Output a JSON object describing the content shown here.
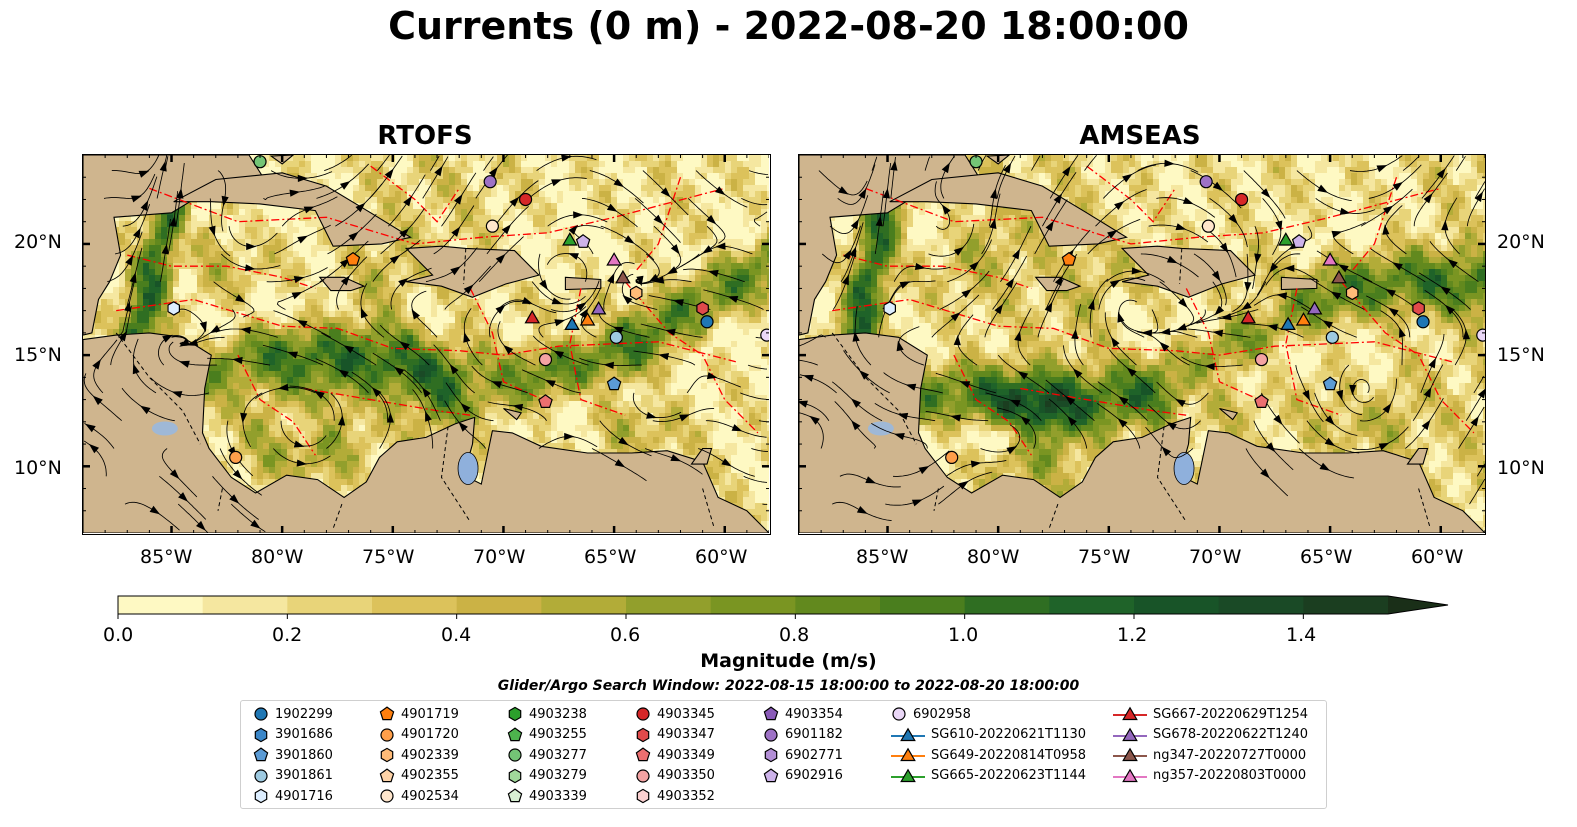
{
  "title": "Currents (0 m) - 2022-08-20 18:00:00",
  "panels": [
    {
      "name": "RTOFS",
      "seed": 3
    },
    {
      "name": "AMSEAS",
      "seed": 11
    }
  ],
  "map_colors": {
    "land": "#cfb58e",
    "ocean_outside": "#93b5e0",
    "eez": "#ff0000",
    "border": "#000000",
    "streamline": "#000000"
  },
  "lon_ticks": [
    "85°W",
    "80°W",
    "75°W",
    "70°W",
    "65°W",
    "60°W"
  ],
  "lat_ticks": [
    "20°N",
    "15°N",
    "10°N"
  ],
  "colorbar": {
    "label": "Magnitude (m/s)",
    "min": 0.0,
    "max": 1.5,
    "extend": "max",
    "ticks": [
      "0.0",
      "0.2",
      "0.4",
      "0.6",
      "0.8",
      "1.0",
      "1.2",
      "1.4"
    ],
    "colors": [
      "#fef9c3",
      "#f5e7a0",
      "#e8d479",
      "#dcc25b",
      "#cbb245",
      "#b2ac38",
      "#929f2c",
      "#7a9522",
      "#62891e",
      "#4a7e1e",
      "#2f6e22",
      "#1f6329",
      "#185428",
      "#1a4a26",
      "#1b3e20",
      "#1a2f18"
    ]
  },
  "search_window": "Glider/Argo Search Window: 2022-08-15 18:00:00 to 2022-08-20 18:00:00",
  "legend": {
    "columns": [
      [
        {
          "label": "1902299",
          "shape": "circle",
          "color": "#1f77b4"
        },
        {
          "label": "3901686",
          "shape": "hexagon",
          "color": "#3a86c8"
        },
        {
          "label": "3901860",
          "shape": "pentagon",
          "color": "#5b9bd5"
        },
        {
          "label": "3901861",
          "shape": "circle",
          "color": "#9ecae1"
        },
        {
          "label": "4901716",
          "shape": "hexagon",
          "color": "#ddeeff"
        }
      ],
      [
        {
          "label": "4901719",
          "shape": "pentagon",
          "color": "#ff7f0e"
        },
        {
          "label": "4901720",
          "shape": "circle",
          "color": "#ff9f4a"
        },
        {
          "label": "4902339",
          "shape": "hexagon",
          "color": "#ffbb78"
        },
        {
          "label": "4902355",
          "shape": "pentagon",
          "color": "#ffd4a8"
        },
        {
          "label": "4902534",
          "shape": "circle",
          "color": "#ffe6cc"
        }
      ],
      [
        {
          "label": "4903238",
          "shape": "hexagon",
          "color": "#2ca02c"
        },
        {
          "label": "4903255",
          "shape": "pentagon",
          "color": "#4db34d"
        },
        {
          "label": "4903277",
          "shape": "circle",
          "color": "#74c476"
        },
        {
          "label": "4903279",
          "shape": "hexagon",
          "color": "#a1d99b"
        },
        {
          "label": "4903339",
          "shape": "pentagon",
          "color": "#d8f0d3"
        }
      ],
      [
        {
          "label": "4903345",
          "shape": "circle",
          "color": "#d62728"
        },
        {
          "label": "4903347",
          "shape": "hexagon",
          "color": "#e04a4b"
        },
        {
          "label": "4903349",
          "shape": "pentagon",
          "color": "#ec6f70"
        },
        {
          "label": "4903350",
          "shape": "circle",
          "color": "#f4a3a3"
        },
        {
          "label": "4903352",
          "shape": "hexagon",
          "color": "#fbd0d0"
        }
      ],
      [
        {
          "label": "4903354",
          "shape": "pentagon",
          "color": "#8a5bb8"
        },
        {
          "label": "6901182",
          "shape": "circle",
          "color": "#9e72c6"
        },
        {
          "label": "6902771",
          "shape": "hexagon",
          "color": "#b38fd6"
        },
        {
          "label": "6902916",
          "shape": "pentagon",
          "color": "#cdb3ea"
        }
      ],
      [
        {
          "label": "6902958",
          "shape": "circle",
          "color": "#ead7f7"
        },
        {
          "label": "SG610-20220621T1130",
          "shape": "triangle-line",
          "color": "#1f77b4"
        },
        {
          "label": "SG649-20220814T0958",
          "shape": "triangle-line",
          "color": "#ff7f0e"
        },
        {
          "label": "SG665-20220623T1144",
          "shape": "triangle-line",
          "color": "#2ca02c"
        }
      ],
      [
        {
          "label": "SG667-20220629T1254",
          "shape": "triangle-line",
          "color": "#d62728"
        },
        {
          "label": "SG678-20220622T1240",
          "shape": "triangle-line",
          "color": "#9467bd"
        },
        {
          "label": "ng347-20220727T0000",
          "shape": "triangle-line",
          "color": "#8c564b"
        },
        {
          "label": "ng357-20220803T0000",
          "shape": "triangle-line",
          "color": "#e377c2"
        }
      ]
    ]
  },
  "chart_data": {
    "type": "heatmap",
    "title": "Currents (0 m) - 2022-08-20 18:00:00",
    "panels": [
      "RTOFS",
      "AMSEAS"
    ],
    "variable": "Magnitude (m/s)",
    "color_range": [
      0.0,
      1.5
    ],
    "xlim": [
      -89,
      -58
    ],
    "ylim": [
      7,
      24
    ],
    "x_ticks": [
      -85,
      -80,
      -75,
      -70,
      -65,
      -60
    ],
    "y_ticks": [
      20,
      15,
      10
    ],
    "overlay": "streamlines",
    "markers": [
      {
        "id": "4903277",
        "lon": -81.0,
        "lat": 23.7
      },
      {
        "id": "6901182",
        "lon": -70.6,
        "lat": 22.8
      },
      {
        "id": "4903345",
        "lon": -69.0,
        "lat": 22.0
      },
      {
        "id": "4902534",
        "lon": -70.5,
        "lat": 20.8
      },
      {
        "id": "SG665-20220623T1144",
        "lon": -67.0,
        "lat": 20.2
      },
      {
        "id": "6902916",
        "lon": -66.4,
        "lat": 20.1
      },
      {
        "id": "4901719",
        "lon": -76.8,
        "lat": 19.3
      },
      {
        "id": "ng357-20220803T0000",
        "lon": -65.0,
        "lat": 19.3
      },
      {
        "id": "ng347-20220727T0000",
        "lon": -64.6,
        "lat": 18.5
      },
      {
        "id": "4902339",
        "lon": -64.0,
        "lat": 17.8
      },
      {
        "id": "4901716",
        "lon": -84.9,
        "lat": 17.1
      },
      {
        "id": "SG678-20220622T1240",
        "lon": -65.7,
        "lat": 17.1
      },
      {
        "id": "4903347",
        "lon": -61.0,
        "lat": 17.1
      },
      {
        "id": "SG667-20220629T1254",
        "lon": -68.7,
        "lat": 16.7
      },
      {
        "id": "SG649-20220814T0958",
        "lon": -66.2,
        "lat": 16.6
      },
      {
        "id": "SG610-20220621T1130",
        "lon": -66.9,
        "lat": 16.4
      },
      {
        "id": "1902299",
        "lon": -60.8,
        "lat": 16.5
      },
      {
        "id": "3901861",
        "lon": -64.9,
        "lat": 15.8
      },
      {
        "id": "6902958",
        "lon": -58.1,
        "lat": 15.9
      },
      {
        "id": "4903350",
        "lon": -68.1,
        "lat": 14.8
      },
      {
        "id": "3901860",
        "lon": -65.0,
        "lat": 13.7
      },
      {
        "id": "4903349",
        "lon": -68.1,
        "lat": 12.9
      },
      {
        "id": "4901720",
        "lon": -82.1,
        "lat": 10.4
      }
    ]
  }
}
